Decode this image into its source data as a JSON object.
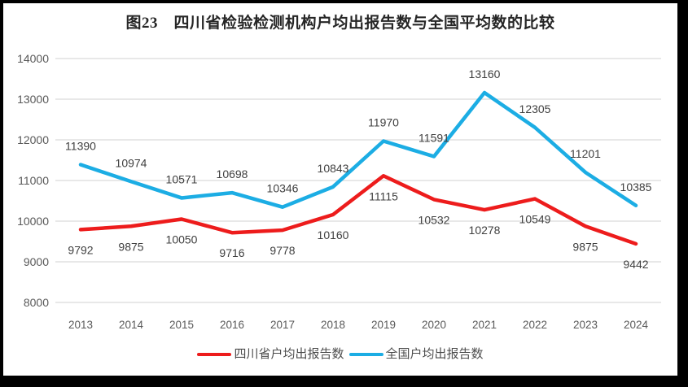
{
  "title": "图23　四川省检验检测机构户均出报告数与全国平均数的比较",
  "chart_data": {
    "type": "line",
    "title": "图23　四川省检验检测机构户均出报告数与全国平均数的比较",
    "categories": [
      "2013",
      "2014",
      "2015",
      "2016",
      "2017",
      "2018",
      "2019",
      "2020",
      "2021",
      "2022",
      "2023",
      "2024"
    ],
    "series": [
      {
        "name": "四川省户均出报告数",
        "color": "#ED1C1C",
        "values": [
          9792,
          9875,
          10050,
          9716,
          9778,
          10160,
          11115,
          10532,
          10278,
          10549,
          9875,
          9442
        ],
        "label_position": "below"
      },
      {
        "name": "全国户均出报告数",
        "color": "#1CADE4",
        "values": [
          11390,
          10974,
          10571,
          10698,
          10346,
          10843,
          11970,
          11591,
          13160,
          12305,
          11201,
          10385
        ],
        "label_position": "above"
      }
    ],
    "ylim": [
      8000,
      14000
    ],
    "yticks": [
      8000,
      9000,
      10000,
      11000,
      12000,
      13000,
      14000
    ],
    "grid": true,
    "legend_position": "bottom",
    "colors": {
      "grid_line": "#D9D9D9",
      "axis_text": "#595959",
      "data_label_text": "#404040",
      "background": "#FFFFFF",
      "frame": "#000000"
    }
  }
}
